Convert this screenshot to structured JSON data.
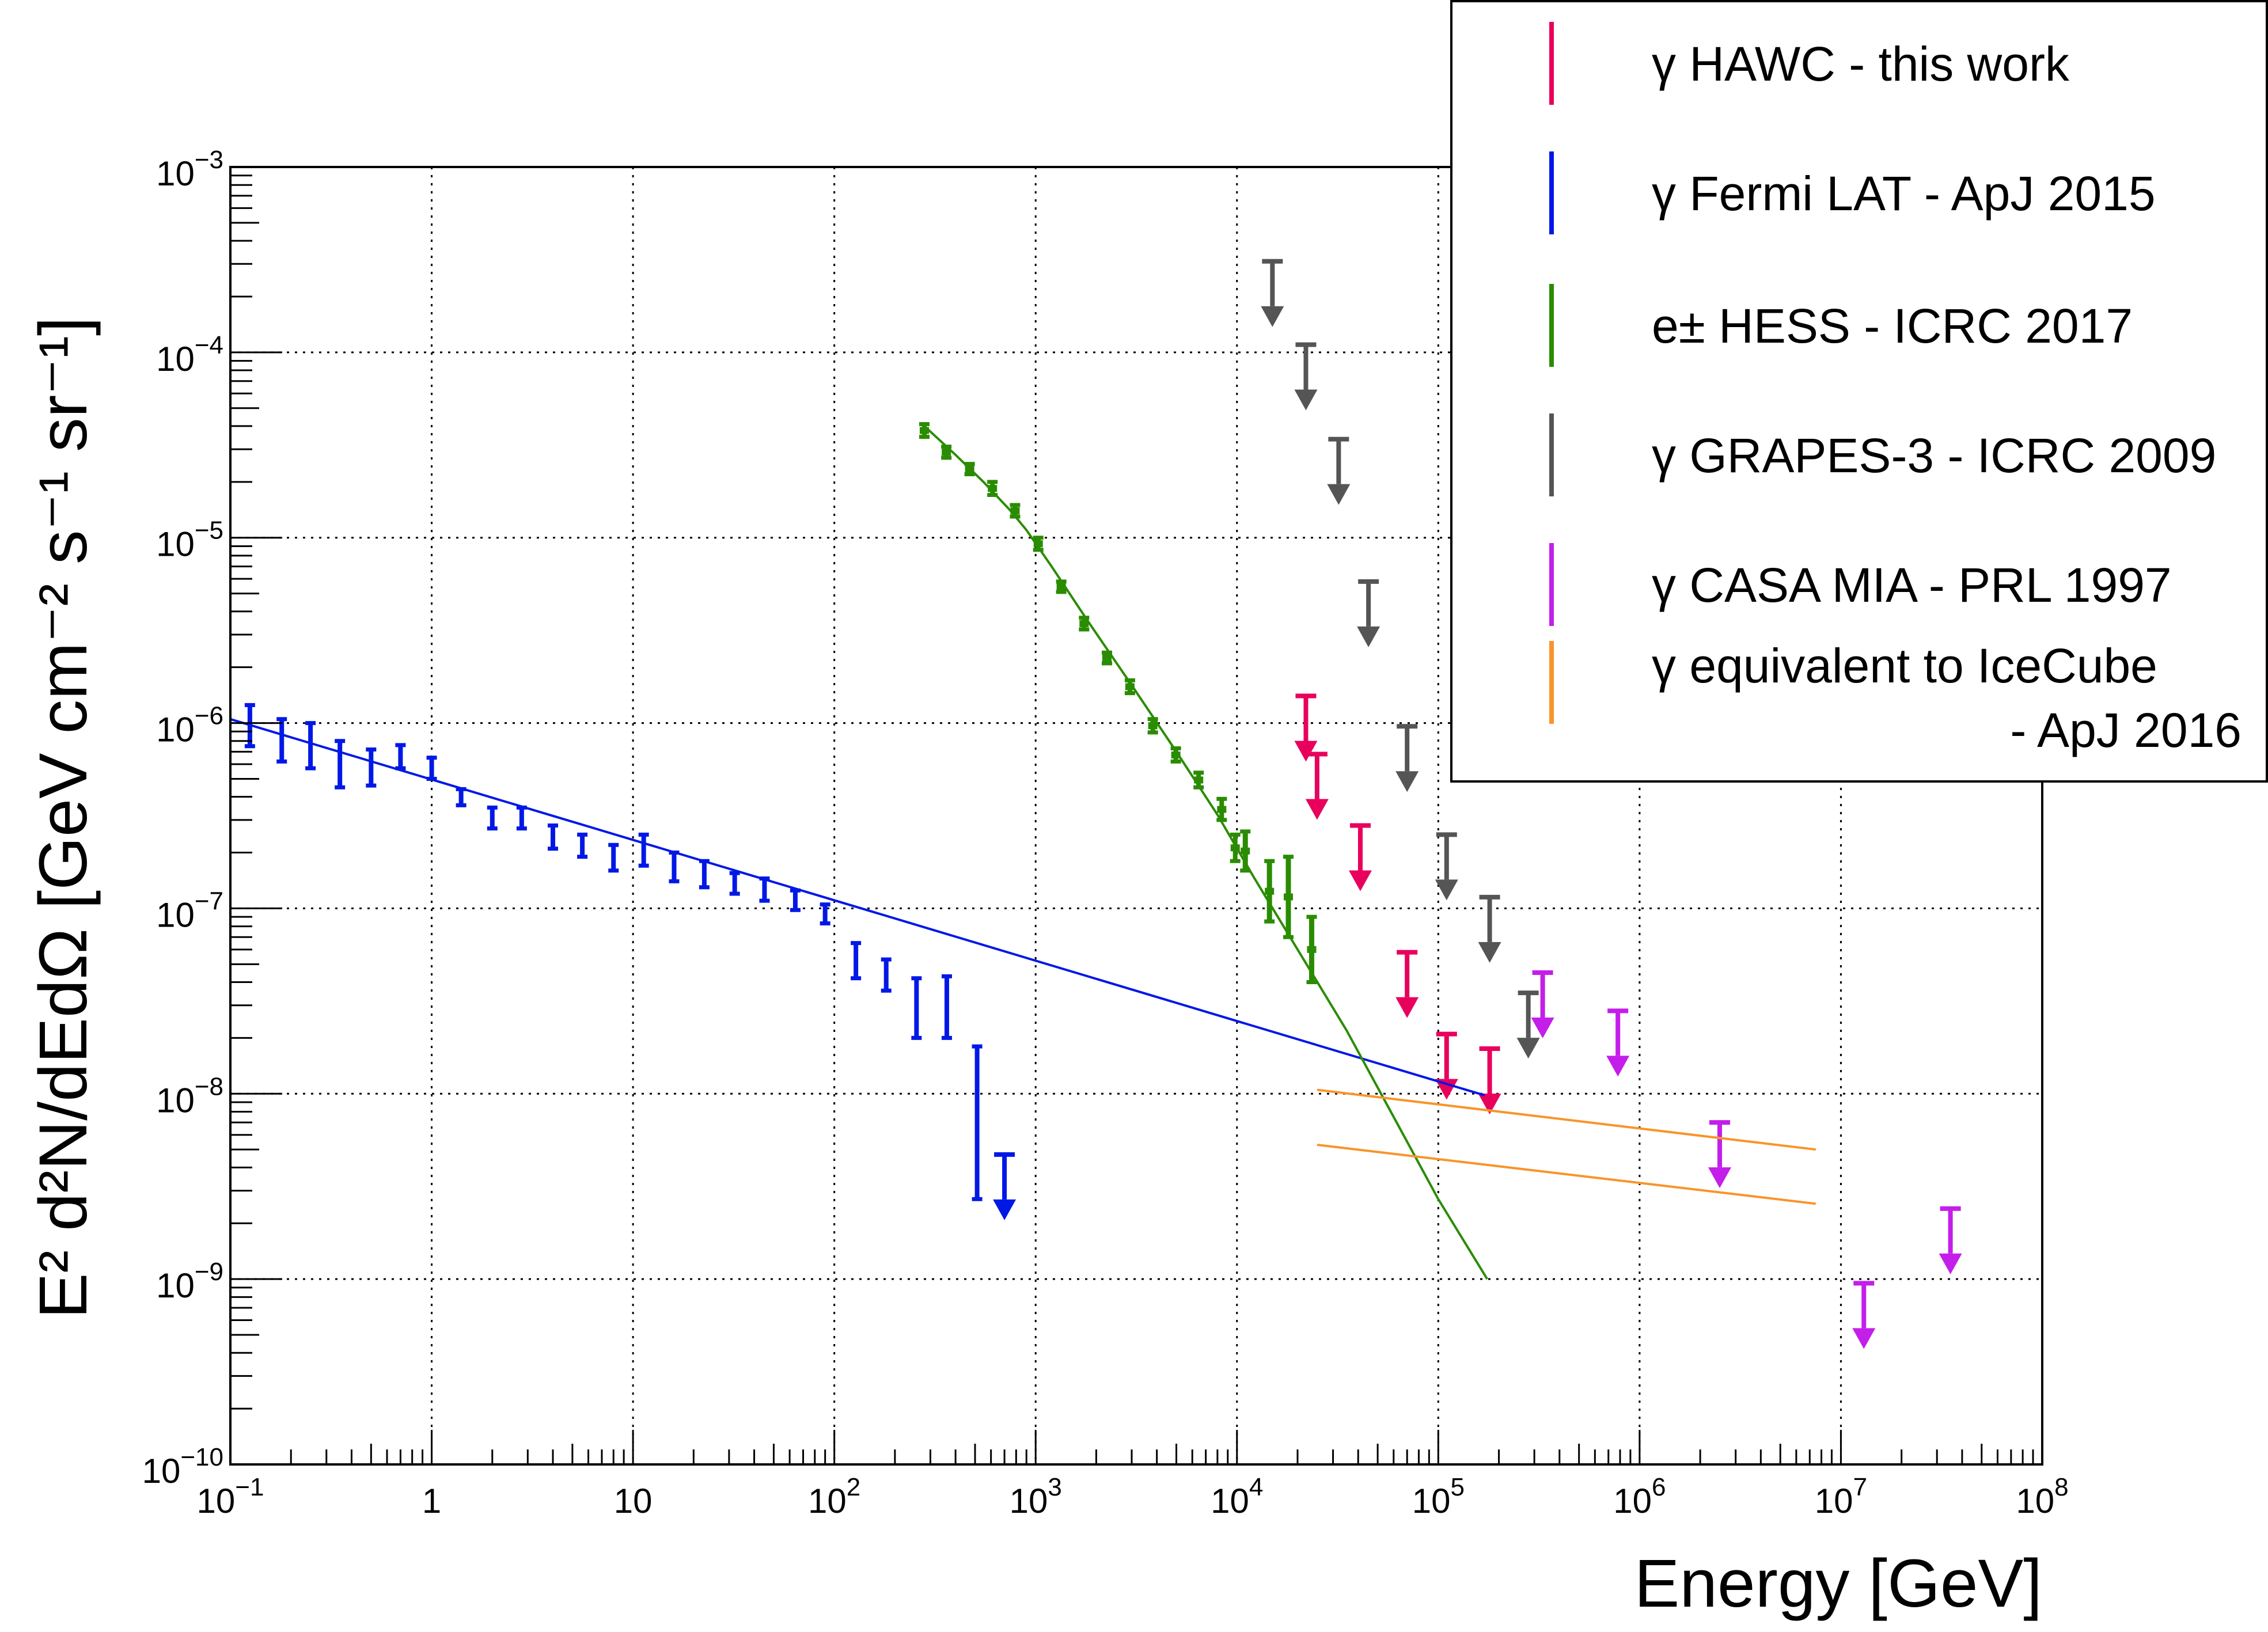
{
  "chart_data": {
    "type": "scatter",
    "title": "",
    "xlabel": "Energy [GeV]",
    "ylabel": "E² d²N/dEdΩ [GeV cm⁻² s⁻¹ sr⁻¹]",
    "xscale": "log",
    "yscale": "log",
    "xlim": [
      0.1,
      100000000
    ],
    "ylim": [
      1e-10,
      0.001
    ],
    "grid": true,
    "legend_position": "top-right",
    "x_ticks": [
      {
        "value": 0.1,
        "base": "10",
        "exp": "−1"
      },
      {
        "value": 1,
        "base": "1",
        "exp": ""
      },
      {
        "value": 10,
        "base": "10",
        "exp": ""
      },
      {
        "value": 100,
        "base": "10",
        "exp": "2"
      },
      {
        "value": 1000,
        "base": "10",
        "exp": "3"
      },
      {
        "value": 10000,
        "base": "10",
        "exp": "4"
      },
      {
        "value": 100000,
        "base": "10",
        "exp": "5"
      },
      {
        "value": 1000000,
        "base": "10",
        "exp": "6"
      },
      {
        "value": 10000000,
        "base": "10",
        "exp": "7"
      },
      {
        "value": 100000000,
        "base": "10",
        "exp": "8"
      }
    ],
    "y_ticks": [
      {
        "value": 1e-10,
        "base": "10",
        "exp": "−10"
      },
      {
        "value": 1e-09,
        "base": "10",
        "exp": "−9"
      },
      {
        "value": 1e-08,
        "base": "10",
        "exp": "−8"
      },
      {
        "value": 1e-07,
        "base": "10",
        "exp": "−7"
      },
      {
        "value": 1e-06,
        "base": "10",
        "exp": "−6"
      },
      {
        "value": 1e-05,
        "base": "10",
        "exp": "−5"
      },
      {
        "value": 0.0001,
        "base": "10",
        "exp": "−4"
      },
      {
        "value": 0.001,
        "base": "10",
        "exp": "−3"
      }
    ],
    "series": [
      {
        "key": "hawc",
        "name": "γ HAWC - this work",
        "color": "#e8005c",
        "kind": "upper_limits",
        "x": [
          22000,
          25000,
          41000,
          70000,
          110000,
          180000
        ],
        "y": [
          1.4e-06,
          6.8e-07,
          2.8e-07,
          5.8e-08,
          2.1e-08,
          1.75e-08
        ]
      },
      {
        "key": "fermi",
        "name": "γ Fermi LAT - ApJ 2015",
        "color": "#0018e6",
        "kind": "error_bars",
        "x": [
          0.125,
          0.18,
          0.25,
          0.35,
          0.5,
          0.7,
          1.0,
          1.4,
          2.0,
          2.8,
          4.0,
          5.6,
          8.0,
          11.3,
          16,
          22.6,
          32,
          45,
          64,
          90,
          128,
          181,
          256,
          362,
          512
        ],
        "y_low": [
          7.5e-07,
          6.2e-07,
          5.7e-07,
          4.5e-07,
          4.6e-07,
          5.7e-07,
          5e-07,
          3.6e-07,
          2.7e-07,
          2.7e-07,
          2.1e-07,
          1.9e-07,
          1.6e-07,
          1.7e-07,
          1.4e-07,
          1.3e-07,
          1.2e-07,
          1.1e-07,
          9.8e-08,
          8.3e-08,
          4.2e-08,
          3.6e-08,
          2e-08,
          2e-08,
          2.7e-09
        ],
        "y_high": [
          1.25e-06,
          1.05e-06,
          1e-06,
          8e-07,
          7.2e-07,
          7.6e-07,
          6.5e-07,
          4.4e-07,
          3.5e-07,
          3.5e-07,
          2.8e-07,
          2.5e-07,
          2.2e-07,
          2.5e-07,
          2e-07,
          1.8e-07,
          1.55e-07,
          1.45e-07,
          1.25e-07,
          1.05e-07,
          6.5e-08,
          5.3e-08,
          4.2e-08,
          4.3e-08,
          1.8e-08
        ],
        "upper_limits": {
          "x": [
            700
          ],
          "y": [
            4.7e-09
          ]
        },
        "fit_line": {
          "x": [
            0.1,
            170000
          ],
          "y": [
            1.05e-06,
            9.8e-09
          ]
        }
      },
      {
        "key": "hess",
        "name": "e± HESS - ICRC 2017",
        "color": "#2a8c00",
        "kind": "error_bars",
        "x": [
          280,
          360,
          470,
          610,
          790,
          1030,
          1340,
          1740,
          2260,
          2940,
          3820,
          4970,
          6450,
          8400,
          9800,
          11000,
          14500,
          18000,
          23500
        ],
        "y_low": [
          3.5e-05,
          2.7e-05,
          2.2e-05,
          1.7e-05,
          1.3e-05,
          8.6e-06,
          5.1e-06,
          3.2e-06,
          2.1e-06,
          1.45e-06,
          8.9e-07,
          6.2e-07,
          4.5e-07,
          3e-07,
          1.8e-07,
          1.6e-07,
          8.5e-08,
          7e-08,
          4e-08
        ],
        "y_high": [
          4.1e-05,
          3.1e-05,
          2.5e-05,
          2e-05,
          1.5e-05,
          1e-05,
          5.8e-06,
          3.7e-06,
          2.4e-06,
          1.7e-06,
          1.05e-06,
          7.3e-07,
          5.4e-07,
          3.9e-07,
          2.5e-07,
          2.6e-07,
          1.8e-07,
          1.9e-07,
          9e-08
        ],
        "fit_line": {
          "x": [
            280,
            400,
            550,
            750,
            900,
            1200,
            1800,
            3000,
            5000,
            8000,
            12000,
            20000,
            35000,
            60000,
            100000,
            175000
          ],
          "y": [
            4e-05,
            2.8e-05,
            2e-05,
            1.4e-05,
            1.1e-05,
            7e-06,
            3.6e-06,
            1.6e-06,
            7e-07,
            3.2e-07,
            1.5e-07,
            6e-08,
            2.2e-08,
            7.5e-09,
            2.7e-09,
            1e-09
          ]
        }
      },
      {
        "key": "grapes",
        "name": "γ GRAPES-3 - ICRC 2009",
        "color": "#555555",
        "kind": "upper_limits",
        "x": [
          15000,
          22000,
          32000,
          45000,
          70000,
          110000,
          180000,
          280000
        ],
        "y": [
          0.00031,
          0.00011,
          3.4e-05,
          5.8e-06,
          9.6e-07,
          2.5e-07,
          1.15e-07,
          3.5e-08
        ]
      },
      {
        "key": "casa",
        "name": "γ CASA MIA - PRL 1997",
        "color": "#c41eea",
        "kind": "upper_limits",
        "x": [
          330000,
          780000,
          2500000,
          13000000,
          35000000
        ],
        "y": [
          4.5e-08,
          2.8e-08,
          7e-09,
          9.5e-10,
          2.4e-09
        ]
      },
      {
        "key": "icecube",
        "name_line1": "γ equivalent to IceCube",
        "name_line2": "- ApJ 2016",
        "color": "#f7952a",
        "kind": "lines",
        "lines": [
          {
            "x": [
              25000,
              7500000
            ],
            "y": [
              1.05e-08,
              5e-09
            ]
          },
          {
            "x": [
              25000,
              7500000
            ],
            "y": [
              5.3e-09,
              2.55e-09
            ]
          }
        ]
      }
    ]
  }
}
